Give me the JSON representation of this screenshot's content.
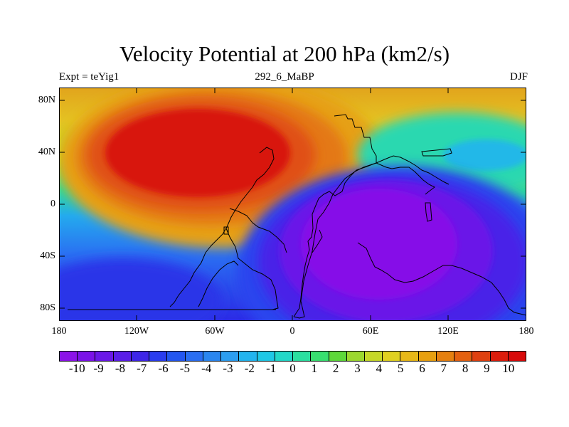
{
  "title": "Velocity Potential at 200 hPa (km2/s)",
  "left_label": "Expt = teYig1",
  "center_label": "292_6_MaBP",
  "right_label": "DJF",
  "lat_ticks": [
    "80N",
    "40N",
    "0",
    "40S",
    "80S"
  ],
  "lon_ticks": [
    "180",
    "120W",
    "60W",
    "0",
    "60E",
    "120E",
    "180"
  ],
  "colorbar": {
    "labels": [
      "-10",
      "-9",
      "-8",
      "-7",
      "-6",
      "-5",
      "-4",
      "-3",
      "-2",
      "-1",
      "0",
      "1",
      "2",
      "3",
      "4",
      "5",
      "6",
      "7",
      "8",
      "9",
      "10"
    ],
    "colors": [
      "#8b12e8",
      "#7a12e8",
      "#6a18e8",
      "#5a1ee8",
      "#3e26e8",
      "#2a3cef",
      "#2356f0",
      "#2a6ef2",
      "#2a86f0",
      "#2c9ef0",
      "#22b4ee",
      "#1ec8e6",
      "#22d8c8",
      "#2ae0a0",
      "#38e070",
      "#5ed83a",
      "#9cd82e",
      "#c6d828",
      "#e0d020",
      "#e8b818",
      "#e8a010",
      "#e68010",
      "#e46010",
      "#e04010",
      "#dc1c0c",
      "#d80a0a"
    ]
  }
}
